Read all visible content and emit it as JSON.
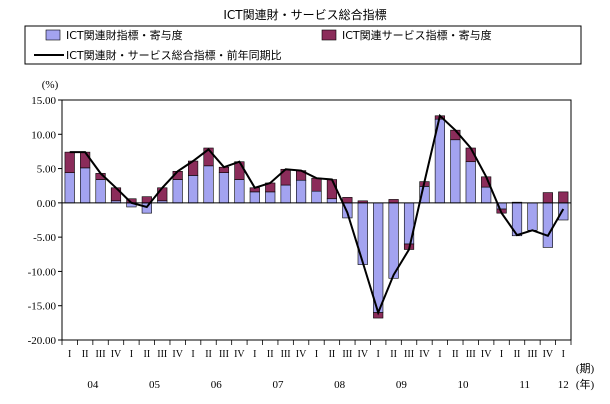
{
  "chart_data": {
    "type": "bar",
    "title": "ICT関連財・サービス総合指標",
    "legend": {
      "placement": "top",
      "entries": [
        "ICT関連財指標・寄与度",
        "ICT関連サービス指標・寄与度",
        "ICT関連財・サービス総合指標・前年同期比"
      ]
    },
    "ylabel": "(%)",
    "xunit_label": "(期)",
    "year_unit_label": "(年)",
    "ylim": [
      -20,
      15
    ],
    "yticks": [
      "15.00",
      "10.00",
      "5.00",
      "0.00",
      "-5.00",
      "-10.00",
      "-15.00",
      "-20.00"
    ],
    "grid": false,
    "stacked": true,
    "categories": [
      "I",
      "II",
      "III",
      "IV",
      "I",
      "II",
      "III",
      "IV",
      "I",
      "II",
      "III",
      "IV",
      "I",
      "II",
      "III",
      "IV",
      "I",
      "II",
      "III",
      "IV",
      "I",
      "II",
      "III",
      "IV",
      "I",
      "II",
      "III",
      "IV",
      "I",
      "II",
      "III",
      "IV",
      "I"
    ],
    "years": [
      {
        "label": "04",
        "start": 0,
        "end": 3
      },
      {
        "label": "05",
        "start": 4,
        "end": 7
      },
      {
        "label": "06",
        "start": 8,
        "end": 11
      },
      {
        "label": "07",
        "start": 12,
        "end": 15
      },
      {
        "label": "08",
        "start": 16,
        "end": 19
      },
      {
        "label": "09",
        "start": 20,
        "end": 23
      },
      {
        "label": "10",
        "start": 24,
        "end": 27
      },
      {
        "label": "11",
        "start": 28,
        "end": 31
      },
      {
        "label": "12",
        "start": 32,
        "end": 32
      }
    ],
    "series": [
      {
        "name": "ICT関連財指標・寄与度",
        "kind": "bar",
        "color": "#a3a3f0",
        "values": [
          4.4,
          5.1,
          3.4,
          0.3,
          -0.6,
          -1.5,
          0.3,
          3.4,
          4.0,
          5.4,
          4.4,
          3.4,
          1.6,
          1.6,
          2.6,
          3.3,
          1.7,
          0.6,
          -2.2,
          -9.0,
          -16.0,
          -11.0,
          -6.0,
          2.4,
          12.2,
          9.2,
          6.0,
          2.3,
          -0.9,
          -4.8,
          -4.0,
          -6.5,
          -2.5
        ]
      },
      {
        "name": "ICT関連サービス指標・寄与度",
        "kind": "bar",
        "color": "#8b2c5a",
        "values": [
          3.0,
          2.3,
          0.9,
          1.9,
          0.6,
          0.9,
          1.9,
          1.2,
          2.1,
          2.6,
          0.8,
          2.6,
          0.6,
          1.3,
          2.3,
          1.4,
          1.9,
          2.8,
          0.8,
          0.3,
          -0.8,
          0.5,
          -0.8,
          0.7,
          0.5,
          1.4,
          2.0,
          1.5,
          -0.6,
          0.1,
          0.0,
          1.5,
          1.6
        ]
      },
      {
        "name": "ICT関連財・サービス総合指標・前年同期比",
        "kind": "line",
        "color": "#000000",
        "values": [
          7.4,
          7.4,
          4.3,
          2.2,
          0.0,
          -0.6,
          2.2,
          4.6,
          6.1,
          7.8,
          5.2,
          6.0,
          2.2,
          2.9,
          4.9,
          4.7,
          3.6,
          3.4,
          -1.4,
          -8.7,
          -16.0,
          -10.5,
          -6.8,
          3.1,
          12.7,
          10.6,
          8.0,
          3.8,
          -1.5,
          -4.7,
          -4.0,
          -4.8,
          -0.9
        ]
      }
    ]
  }
}
